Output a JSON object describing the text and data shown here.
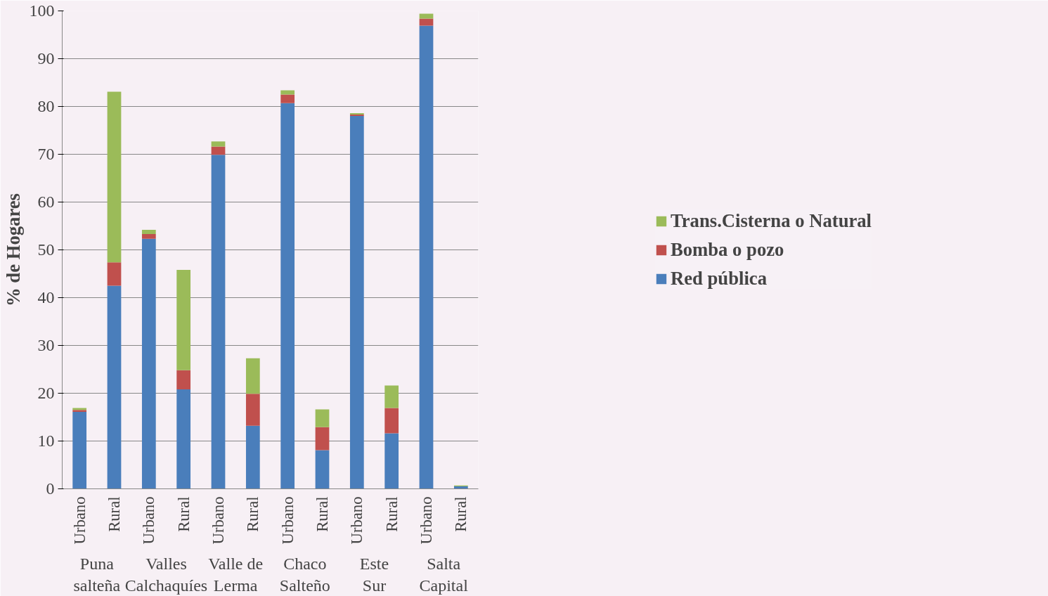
{
  "chart_data": {
    "type": "bar",
    "stacked": true,
    "ylabel": "% de Hogares",
    "categories": [
      "Urbano",
      "Rural",
      "Urbano",
      "Rural",
      "Urbano",
      "Rural",
      "Urbano",
      "Rural",
      "Urbano",
      "Rural",
      "Urbano",
      "Rural"
    ],
    "annotations": [
      "Puna salteña",
      "Valles Calchaquíes",
      "Valle de Lerma",
      "Chaco Salteño",
      "Este Sur",
      "Salta Capital"
    ],
    "series": [
      {
        "name": "Red pública",
        "color": "#4a7ebb",
        "values": [
          16.1,
          42.5,
          52.3,
          20.8,
          69.9,
          13.2,
          80.7,
          8.1,
          78.0,
          11.6,
          96.9,
          0.5
        ]
      },
      {
        "name": "Bomba o pozo",
        "color": "#c0504d",
        "values": [
          0.4,
          4.9,
          1.0,
          4.0,
          1.7,
          6.7,
          1.8,
          4.8,
          0.3,
          5.3,
          1.5,
          null
        ]
      },
      {
        "name": "Trans.Cisterna o Natural",
        "color": "#9bbb59",
        "values": [
          0.4,
          35.7,
          0.9,
          21.0,
          1.1,
          7.4,
          0.9,
          3.7,
          0.3,
          4.7,
          1.0,
          0.2
        ]
      }
    ],
    "ylim": [
      0,
      100
    ],
    "yticks": [
      0,
      10,
      20,
      30,
      40,
      50,
      60,
      70,
      80,
      90,
      100
    ],
    "grid": "y",
    "legend": "right"
  }
}
